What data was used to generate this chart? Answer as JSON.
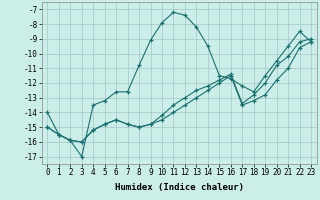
{
  "xlabel": "Humidex (Indice chaleur)",
  "bg_color": "#cceee8",
  "grid_color": "#aacccc",
  "line_color": "#1a7070",
  "xlim": [
    -0.5,
    23.5
  ],
  "ylim": [
    -17.5,
    -6.5
  ],
  "yticks": [
    -17,
    -16,
    -15,
    -14,
    -13,
    -12,
    -11,
    -10,
    -9,
    -8,
    -7
  ],
  "xticks": [
    0,
    1,
    2,
    3,
    4,
    5,
    6,
    7,
    8,
    9,
    10,
    11,
    12,
    13,
    14,
    15,
    16,
    17,
    18,
    19,
    20,
    21,
    22,
    23
  ],
  "series": [
    {
      "x": [
        0,
        1,
        2,
        3,
        4,
        5,
        6,
        7,
        8,
        9,
        10,
        11,
        12,
        13,
        14,
        15,
        16,
        17,
        18,
        19,
        20,
        21,
        22,
        23
      ],
      "y": [
        -14.0,
        -15.5,
        -15.9,
        -17.0,
        -13.5,
        -13.2,
        -12.6,
        -12.6,
        -10.8,
        -9.1,
        -7.9,
        -7.2,
        -7.4,
        -8.2,
        -9.5,
        -11.5,
        -11.7,
        -12.2,
        -12.6,
        -11.5,
        -10.5,
        -9.5,
        -8.5,
        -9.2
      ]
    },
    {
      "x": [
        0,
        1,
        2,
        3,
        4,
        5,
        6,
        7,
        8,
        9,
        10,
        11,
        12,
        13,
        14,
        15,
        16,
        17,
        18,
        19,
        20,
        21,
        22,
        23
      ],
      "y": [
        -15.0,
        -15.5,
        -15.9,
        -16.0,
        -15.2,
        -14.8,
        -14.5,
        -14.8,
        -15.0,
        -14.8,
        -14.5,
        -14.0,
        -13.5,
        -13.0,
        -12.5,
        -12.0,
        -11.5,
        -13.5,
        -13.2,
        -12.8,
        -11.8,
        -11.0,
        -9.6,
        -9.2
      ]
    },
    {
      "x": [
        0,
        1,
        2,
        3,
        4,
        5,
        6,
        7,
        8,
        9,
        10,
        11,
        12,
        13,
        14,
        15,
        16,
        17,
        18,
        19,
        20,
        21,
        22,
        23
      ],
      "y": [
        -15.0,
        -15.5,
        -15.9,
        -16.0,
        -15.2,
        -14.8,
        -14.5,
        -14.8,
        -15.0,
        -14.8,
        -14.2,
        -13.5,
        -13.0,
        -12.5,
        -12.2,
        -11.8,
        -11.4,
        -13.4,
        -12.8,
        -12.0,
        -10.8,
        -10.2,
        -9.2,
        -9.0
      ]
    }
  ]
}
